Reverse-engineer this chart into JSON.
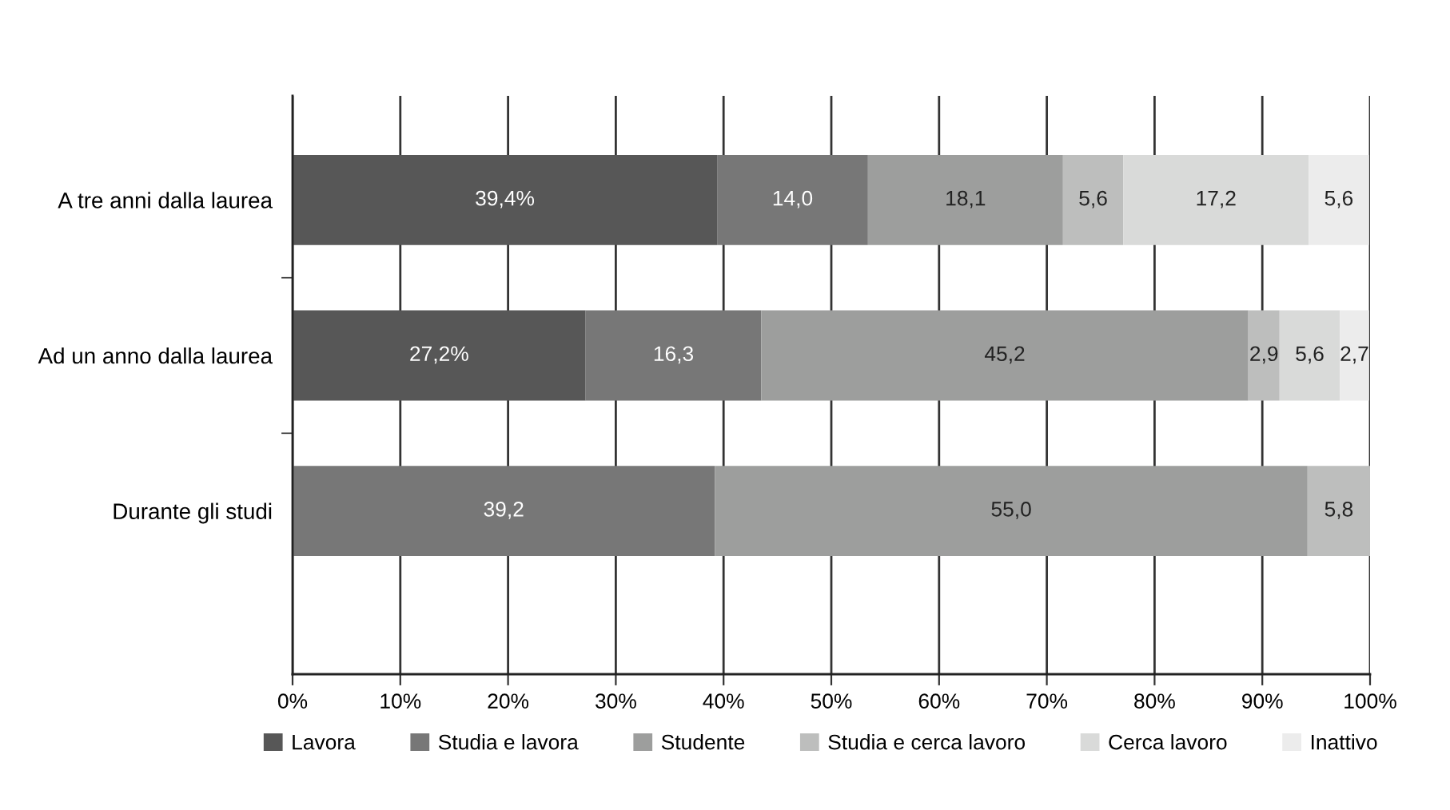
{
  "chart_data": {
    "type": "bar",
    "orientation": "horizontal",
    "stacked": true,
    "categories": [
      "A tre anni dalla laurea",
      "Ad un anno dalla laurea",
      "Durante gli studi"
    ],
    "series": [
      {
        "name": "Lavora",
        "color": "#575757",
        "values": [
          39.4,
          27.2,
          null
        ],
        "value_labels": [
          "39,4%",
          "27,2%",
          null
        ]
      },
      {
        "name": "Studia e lavora",
        "color": "#777777",
        "values": [
          14.0,
          16.3,
          39.2
        ],
        "value_labels": [
          "14,0",
          "16,3",
          "39,2"
        ]
      },
      {
        "name": "Studente",
        "color": "#9d9e9d",
        "values": [
          18.1,
          45.2,
          55.0
        ],
        "value_labels": [
          "18,1",
          "45,2",
          "55,0"
        ]
      },
      {
        "name": "Studia e cerca lavoro",
        "color": "#bdbebd",
        "values": [
          5.6,
          2.9,
          5.8
        ],
        "value_labels": [
          "5,6",
          "2,9",
          "5,8"
        ]
      },
      {
        "name": "Cerca lavoro",
        "color": "#d9dad9",
        "values": [
          17.2,
          5.6,
          null
        ],
        "value_labels": [
          "17,2",
          "5,6",
          null
        ]
      },
      {
        "name": "Inattivo",
        "color": "#ececec",
        "values": [
          5.6,
          2.7,
          null
        ],
        "value_labels": [
          "5,6",
          "2,7",
          null
        ]
      }
    ],
    "xlim": [
      0,
      100
    ],
    "xticks": [
      {
        "value": 0,
        "label": "0%"
      },
      {
        "value": 10,
        "label": "10%"
      },
      {
        "value": 20,
        "label": "20%"
      },
      {
        "value": 30,
        "label": "30%"
      },
      {
        "value": 40,
        "label": "40%"
      },
      {
        "value": 50,
        "label": "50%"
      },
      {
        "value": 60,
        "label": "60%"
      },
      {
        "value": 70,
        "label": "70%"
      },
      {
        "value": 80,
        "label": "80%"
      },
      {
        "value": 90,
        "label": "90%"
      },
      {
        "value": 100,
        "label": "100%"
      }
    ],
    "grid": "x",
    "legend": "bottom"
  }
}
